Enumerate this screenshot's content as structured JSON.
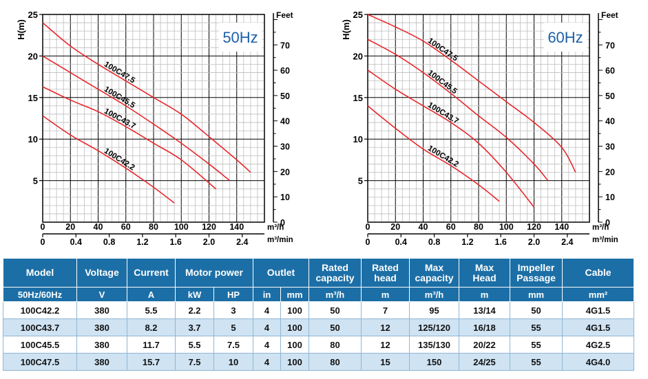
{
  "chart_data": [
    {
      "type": "line",
      "badge": "50Hz",
      "ylabel": "H(m)",
      "right_label": "Feet",
      "x_unit_1": "m³/h",
      "x_unit_2": "m³/min",
      "xlim": [
        0,
        160
      ],
      "ylim": [
        0,
        25
      ],
      "x_ticks": [
        "0",
        "20",
        "40",
        "60",
        "80",
        "100",
        "120",
        "140"
      ],
      "x2_ticks": [
        "0",
        "0.4",
        "0.8",
        "1.2",
        "1.6",
        "2.0",
        "2.4"
      ],
      "y_ticks": [
        "5",
        "10",
        "15",
        "20",
        "25"
      ],
      "feet_ticks": [
        "0",
        "10",
        "20",
        "30",
        "40",
        "50",
        "60",
        "70"
      ],
      "grid": true,
      "series": [
        {
          "name": "100C47.5",
          "x": [
            0,
            20,
            40,
            60,
            80,
            100,
            120,
            140,
            150
          ],
          "y": [
            24,
            21.2,
            19,
            17,
            15,
            13,
            10.3,
            7.5,
            6
          ]
        },
        {
          "name": "100C45.5",
          "x": [
            0,
            20,
            40,
            60,
            80,
            100,
            120,
            135
          ],
          "y": [
            20,
            18,
            16,
            14,
            11.8,
            9.5,
            7,
            5
          ]
        },
        {
          "name": "100C43.7",
          "x": [
            0,
            20,
            40,
            60,
            80,
            100,
            125
          ],
          "y": [
            16.3,
            14.7,
            13.3,
            11.5,
            9.5,
            7.5,
            4
          ]
        },
        {
          "name": "100C42.2",
          "x": [
            0,
            20,
            40,
            60,
            80,
            95
          ],
          "y": [
            12.8,
            10.5,
            8.6,
            6.5,
            4.2,
            2.3
          ]
        }
      ]
    },
    {
      "type": "line",
      "badge": "60Hz",
      "ylabel": "H(m)",
      "right_label": "Feet",
      "x_unit_1": "m³/h",
      "x_unit_2": "m³/min",
      "xlim": [
        0,
        160
      ],
      "ylim": [
        0,
        25
      ],
      "x_ticks": [
        "0",
        "20",
        "40",
        "60",
        "80",
        "100",
        "120",
        "140"
      ],
      "x2_ticks": [
        "0",
        "0.4",
        "0.8",
        "1.2",
        "1.6",
        "2.0",
        "2.4"
      ],
      "y_ticks": [
        "5",
        "10",
        "15",
        "20",
        "25"
      ],
      "feet_ticks": [
        "0",
        "10",
        "20",
        "30",
        "40",
        "50",
        "60",
        "70"
      ],
      "grid": true,
      "series": [
        {
          "name": "100C47.5",
          "x": [
            0,
            20,
            40,
            60,
            80,
            100,
            120,
            140,
            150
          ],
          "y": [
            25,
            23.5,
            21.8,
            19.5,
            17,
            14.5,
            12,
            9,
            6
          ]
        },
        {
          "name": "100C45.5",
          "x": [
            0,
            20,
            40,
            60,
            80,
            100,
            120,
            130
          ],
          "y": [
            22,
            20.2,
            18,
            15.5,
            12.8,
            10.2,
            7,
            5
          ]
        },
        {
          "name": "100C43.7",
          "x": [
            0,
            20,
            40,
            60,
            80,
            100,
            120
          ],
          "y": [
            18.3,
            16,
            14,
            12,
            9.5,
            6,
            1.8
          ]
        },
        {
          "name": "100C42.2",
          "x": [
            0,
            20,
            40,
            60,
            80,
            95
          ],
          "y": [
            14,
            11.3,
            8.8,
            6.8,
            4.5,
            2.5
          ]
        }
      ]
    }
  ],
  "table": {
    "headers": {
      "model": [
        "Model",
        "50Hz/60Hz"
      ],
      "voltage": "Voltage",
      "current": "Current",
      "motor_power": "Motor power",
      "outlet": "Outlet",
      "rated_capacity": [
        "Rated",
        "capacity"
      ],
      "rated_head": [
        "Rated",
        "head"
      ],
      "max_capacity": [
        "Max",
        "capacity"
      ],
      "max_head": [
        "Max",
        "Head"
      ],
      "impeller_passage": [
        "Impeller",
        "Passage"
      ],
      "cable": "Cable"
    },
    "units": [
      "V",
      "A",
      "kW",
      "HP",
      "in",
      "mm",
      "m³/h",
      "m",
      "m³/h",
      "m",
      "mm",
      "mm²"
    ],
    "rows": [
      [
        "100C42.2",
        "380",
        "5.5",
        "2.2",
        "3",
        "4",
        "100",
        "50",
        "7",
        "95",
        "13/14",
        "50",
        "4G1.5"
      ],
      [
        "100C43.7",
        "380",
        "8.2",
        "3.7",
        "5",
        "4",
        "100",
        "50",
        "12",
        "125/120",
        "16/18",
        "55",
        "4G1.5"
      ],
      [
        "100C45.5",
        "380",
        "11.7",
        "5.5",
        "7.5",
        "4",
        "100",
        "80",
        "12",
        "135/130",
        "20/22",
        "55",
        "4G2.5"
      ],
      [
        "100C47.5",
        "380",
        "15.7",
        "7.5",
        "10",
        "4",
        "100",
        "80",
        "15",
        "150",
        "24/25",
        "55",
        "4G4.0"
      ]
    ]
  }
}
